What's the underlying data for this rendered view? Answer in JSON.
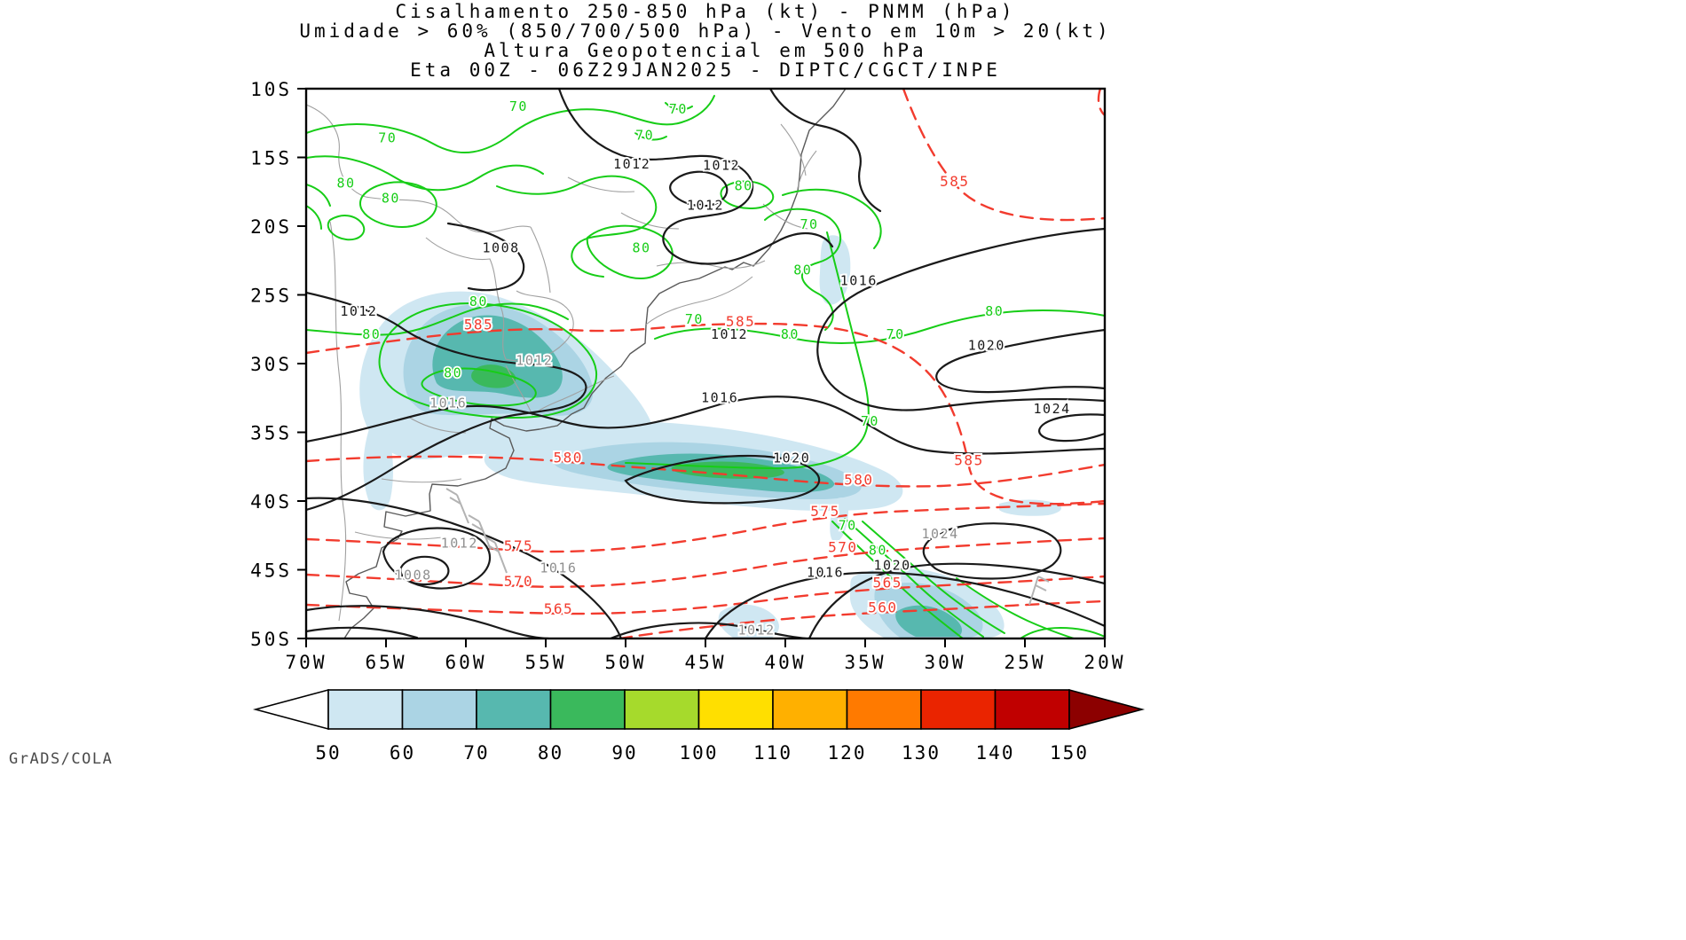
{
  "header": {
    "title_lines": [
      "Cisalhamento 250-850 hPa (kt) - PNMM (hPa)",
      "Umidade > 60% (850/700/500 hPa) - Vento em 10m > 20(kt)",
      "Altura Geopotencial em 500 hPa",
      "Eta 00Z - 06Z29JAN2025 - DIPTC/CGCT/INPE"
    ]
  },
  "credit": "GrADS/COLA",
  "axes": {
    "lat_labels": [
      "10S",
      "15S",
      "20S",
      "25S",
      "30S",
      "35S",
      "40S",
      "45S",
      "50S"
    ],
    "lon_labels": [
      "70W",
      "65W",
      "60W",
      "55W",
      "50W",
      "45W",
      "40W",
      "35W",
      "30W",
      "25W",
      "20W"
    ]
  },
  "colorbar": {
    "values": [
      "50",
      "60",
      "70",
      "80",
      "90",
      "100",
      "110",
      "120",
      "130",
      "140",
      "150"
    ],
    "colors": [
      "#ffffff",
      "#cfe7f2",
      "#abd4e4",
      "#57b8af",
      "#3ab95c",
      "#a6da2c",
      "#ffdf00",
      "#ffb000",
      "#ff7a00",
      "#ea2400",
      "#c00000",
      "#8c0000"
    ]
  },
  "colors": {
    "shade1": "#cfe7f2",
    "shade2": "#abd4e4",
    "shade3": "#57b8af",
    "shade4": "#3ab95c",
    "pressure": "#1a1a1a",
    "pressure_muted": "#8f8f8f",
    "height": "#f23b2e",
    "humidity": "#17cd17",
    "coast": "#5a5a5a",
    "border": "#a0a0a0",
    "barb": "#b3b3b3"
  },
  "chart_data": {
    "type": "contour-map",
    "title": "Cisalhamento 250-850 hPa (kt) - PNMM (hPa)",
    "subtitle_lines": [
      "Umidade > 60% (850/700/500 hPa) - Vento em 10m > 20(kt)",
      "Altura Geopotencial em 500 hPa"
    ],
    "model_run": "Eta 00Z",
    "valid_time": "06Z29JAN2025",
    "source": "DIPTC/CGCT/INPE",
    "region": {
      "lon": [
        -70,
        -20
      ],
      "lat": [
        -50,
        -10
      ]
    },
    "grid": {
      "lon_step": 5,
      "lat_step": 5
    },
    "shading": {
      "field": "Cisalhamento 250-850 hPa",
      "units": "kt",
      "levels": [
        50,
        60,
        70,
        80,
        90,
        100,
        110,
        120,
        130,
        140,
        150
      ]
    },
    "contours": [
      {
        "field": "PNMM",
        "units": "hPa",
        "style": "black solid",
        "interval": 4,
        "labels": [
          {
            "v": "1012",
            "lon": -49.6,
            "lat": -15.8
          },
          {
            "v": "1012",
            "lon": -44.0,
            "lat": -15.9
          },
          {
            "v": "1012",
            "lon": -45.0,
            "lat": -18.8
          },
          {
            "v": "1008",
            "lon": -57.8,
            "lat": -21.9
          },
          {
            "v": "1016",
            "lon": -35.4,
            "lat": -24.3
          },
          {
            "v": "1012",
            "lon": -66.7,
            "lat": -26.5
          },
          {
            "v": "1012",
            "lon": -43.5,
            "lat": -28.2
          },
          {
            "v": "1020",
            "lon": -27.4,
            "lat": -29.0
          },
          {
            "v": "1012",
            "lon": -55.7,
            "lat": -30.1,
            "muted": true
          },
          {
            "v": "1016",
            "lon": -61.1,
            "lat": -33.2,
            "muted": true
          },
          {
            "v": "1016",
            "lon": -44.1,
            "lat": -32.8
          },
          {
            "v": "1024",
            "lon": -23.3,
            "lat": -33.6
          },
          {
            "v": "1020",
            "lon": -39.6,
            "lat": -37.2
          },
          {
            "v": "1012",
            "lon": -60.4,
            "lat": -43.4,
            "muted": true
          },
          {
            "v": "1016",
            "lon": -54.2,
            "lat": -45.2,
            "muted": true
          },
          {
            "v": "1008",
            "lon": -63.3,
            "lat": -45.7,
            "muted": true
          },
          {
            "v": "1016",
            "lon": -37.5,
            "lat": -45.5
          },
          {
            "v": "1020",
            "lon": -33.3,
            "lat": -45.0
          },
          {
            "v": "1024",
            "lon": -30.3,
            "lat": -42.7,
            "muted": true
          },
          {
            "v": "1012",
            "lon": -41.8,
            "lat": -49.7,
            "muted": true
          }
        ]
      },
      {
        "field": "Altura Geopotencial 500 hPa",
        "units": "dam",
        "style": "red dashed",
        "interval": 5,
        "labels": [
          {
            "v": "585",
            "lon": -29.4,
            "lat": -17.1
          },
          {
            "v": "585",
            "lon": -59.2,
            "lat": -27.5
          },
          {
            "v": "585",
            "lon": -42.8,
            "lat": -27.3
          },
          {
            "v": "580",
            "lon": -53.6,
            "lat": -37.2
          },
          {
            "v": "585",
            "lon": -28.5,
            "lat": -37.4
          },
          {
            "v": "580",
            "lon": -35.4,
            "lat": -38.8
          },
          {
            "v": "575",
            "lon": -37.5,
            "lat": -41.1
          },
          {
            "v": "575",
            "lon": -56.7,
            "lat": -43.6
          },
          {
            "v": "570",
            "lon": -36.4,
            "lat": -43.7
          },
          {
            "v": "570",
            "lon": -56.7,
            "lat": -46.2
          },
          {
            "v": "565",
            "lon": -33.6,
            "lat": -46.3
          },
          {
            "v": "565",
            "lon": -54.2,
            "lat": -48.2
          },
          {
            "v": "560",
            "lon": -33.9,
            "lat": -48.1
          }
        ]
      },
      {
        "field": "Cisalhamento / Umidade > 60%",
        "units": "kt",
        "style": "green solid",
        "interval": 10,
        "labels": [
          {
            "v": "70",
            "lon": -56.7,
            "lat": -11.6
          },
          {
            "v": "70",
            "lon": -46.7,
            "lat": -11.8
          },
          {
            "v": "70",
            "lon": -64.9,
            "lat": -13.9
          },
          {
            "v": "70",
            "lon": -48.8,
            "lat": -13.7
          },
          {
            "v": "80",
            "lon": -67.5,
            "lat": -17.2
          },
          {
            "v": "80",
            "lon": -64.7,
            "lat": -18.3
          },
          {
            "v": "80",
            "lon": -42.6,
            "lat": -17.4
          },
          {
            "v": "70",
            "lon": -38.5,
            "lat": -20.2
          },
          {
            "v": "80",
            "lon": -49.0,
            "lat": -21.9
          },
          {
            "v": "80",
            "lon": -38.9,
            "lat": -23.5
          },
          {
            "v": "80",
            "lon": -59.2,
            "lat": -25.8
          },
          {
            "v": "80",
            "lon": -65.9,
            "lat": -28.2
          },
          {
            "v": "70",
            "lon": -45.7,
            "lat": -27.1
          },
          {
            "v": "80",
            "lon": -39.7,
            "lat": -28.2
          },
          {
            "v": "70",
            "lon": -33.1,
            "lat": -28.2
          },
          {
            "v": "80",
            "lon": -26.9,
            "lat": -26.5
          },
          {
            "v": "80",
            "lon": -60.8,
            "lat": -31.0
          },
          {
            "v": "70",
            "lon": -34.7,
            "lat": -34.5
          },
          {
            "v": "70",
            "lon": -36.1,
            "lat": -42.1
          },
          {
            "v": "80",
            "lon": -34.2,
            "lat": -43.9
          }
        ]
      }
    ],
    "symbols": [
      {
        "field": "Vento em 10m > 20 kt",
        "style": "wind-barb",
        "color": "gray"
      }
    ],
    "legend": {
      "position": "bottom",
      "orientation": "horizontal",
      "units": "kt"
    }
  }
}
